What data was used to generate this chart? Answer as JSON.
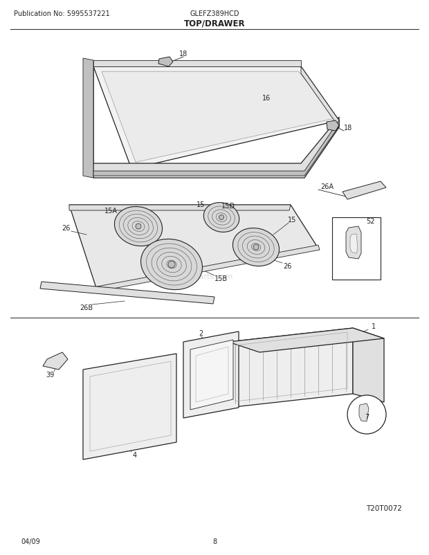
{
  "title": "TOP/DRAWER",
  "pub_no": "Publication No: 5995537221",
  "model": "GLEFZ389HCD",
  "diagram_id": "T20T0072",
  "date": "04/09",
  "page": "8",
  "bg_color": "#ffffff",
  "line_color": "#222222",
  "light_fill": "#f5f5f5",
  "mid_fill": "#e0e0e0",
  "dark_fill": "#c0c0c0"
}
